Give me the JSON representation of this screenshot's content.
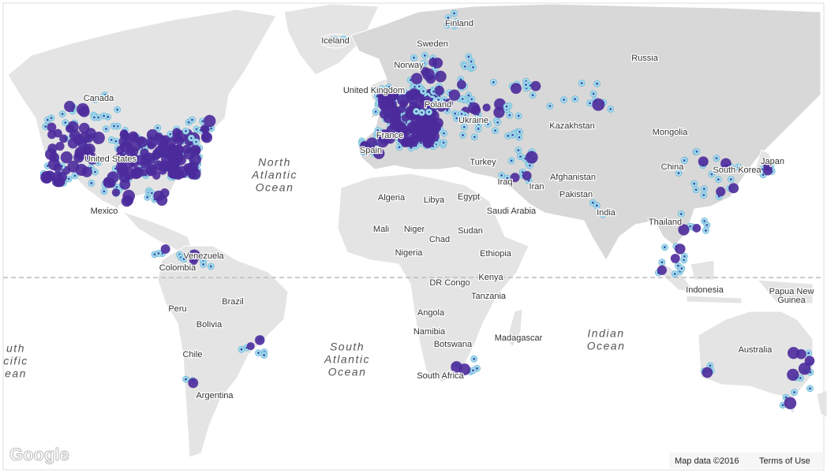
{
  "map": {
    "country_labels": [
      "Canada",
      "United States",
      "Mexico",
      "Venezuela",
      "Colombia",
      "Peru",
      "Brazil",
      "Bolivia",
      "Chile",
      "Argentina",
      "Iceland",
      "Finland",
      "Sweden",
      "Norway",
      "United Kingdom",
      "Poland",
      "Ukraine",
      "France",
      "Spain",
      "Turkey",
      "Russia",
      "Kazakhstan",
      "Mongolia",
      "China",
      "South Korea",
      "Japan",
      "Iraq",
      "Iran",
      "Afghanistan",
      "Pakistan",
      "India",
      "Saudi Arabia",
      "Algeria",
      "Libya",
      "Egypt",
      "Mali",
      "Niger",
      "Chad",
      "Sudan",
      "Nigeria",
      "Ethiopia",
      "DR Congo",
      "Kenya",
      "Tanzania",
      "Angola",
      "Namibia",
      "Botswana",
      "Madagascar",
      "South Africa",
      "Thailand",
      "Indonesia",
      "Papua New",
      "Guinea",
      "Australia"
    ],
    "ocean_labels": [
      [
        "North",
        "Atlantic",
        "Ocean"
      ],
      [
        "South",
        "Atlantic",
        "Ocean"
      ],
      [
        "Indian",
        "Ocean"
      ],
      [
        "uth",
        "cific",
        "ean"
      ]
    ],
    "logo": "Google",
    "attribution": "Map data ©2016",
    "terms": "Terms of Use"
  }
}
